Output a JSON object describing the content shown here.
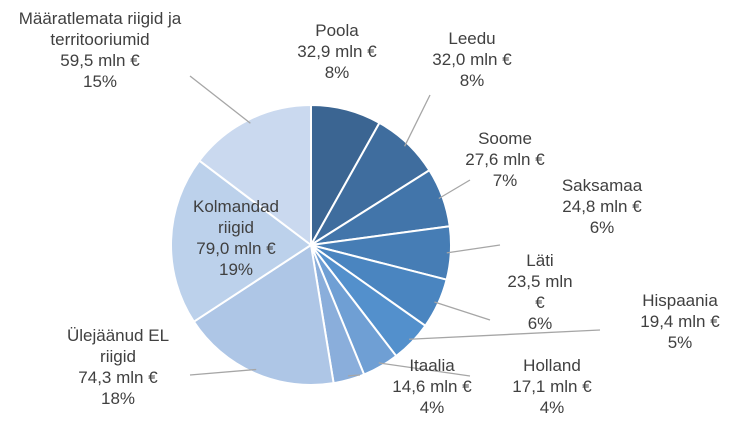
{
  "chart_data": {
    "type": "pie",
    "categories": [
      "Poola",
      "Leedu",
      "Soome",
      "Saksamaa",
      "Läti",
      "Hispaania",
      "Holland",
      "Itaalia",
      "Ülejäänud EL riigid",
      "Kolmandad riigid",
      "Määratlemata riigid ja territooriumid"
    ],
    "values": [
      32.9,
      32.0,
      27.6,
      24.8,
      23.5,
      19.4,
      17.1,
      14.6,
      74.3,
      79.0,
      59.5
    ],
    "value_labels": [
      "32,9 mln €",
      "32,0 mln €",
      "27,6 mln €",
      "24,8 mln €",
      "23,5 mln €",
      "19,4 mln €",
      "17,1 mln €",
      "14,6 mln €",
      "74,3 mln €",
      "79,0 mln €",
      "59,5 mln €"
    ],
    "percents": [
      8,
      8,
      7,
      6,
      6,
      5,
      4,
      4,
      18,
      19,
      15
    ],
    "percent_labels": [
      "8%",
      "8%",
      "7%",
      "6%",
      "6%",
      "5%",
      "4%",
      "4%",
      "18%",
      "19%",
      "15%"
    ],
    "colors": [
      "#3b6592",
      "#3f6d9e",
      "#4275aa",
      "#467db5",
      "#4a85c0",
      "#5390cc",
      "#6f9fd4",
      "#8aaedb",
      "#aec6e6",
      "#bcd1eb",
      "#cad9ef"
    ]
  }
}
